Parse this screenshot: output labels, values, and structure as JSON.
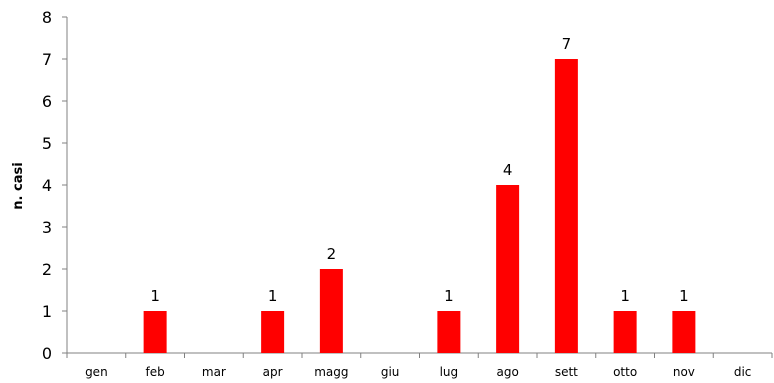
{
  "chart_data": {
    "type": "bar",
    "title": "",
    "xlabel": "",
    "ylabel": "n. casi",
    "categories": [
      "gen",
      "feb",
      "mar",
      "apr",
      "magg",
      "giu",
      "lug",
      "ago",
      "sett",
      "otto",
      "nov",
      "dic"
    ],
    "values": [
      0,
      1,
      0,
      1,
      2,
      0,
      1,
      4,
      7,
      1,
      1,
      0
    ],
    "ylim": [
      0,
      8
    ],
    "yticks": [
      0,
      1,
      2,
      3,
      4,
      5,
      6,
      7,
      8
    ],
    "grid": false,
    "legend": "none",
    "bar_color": "#FF0000",
    "data_labels": true
  }
}
